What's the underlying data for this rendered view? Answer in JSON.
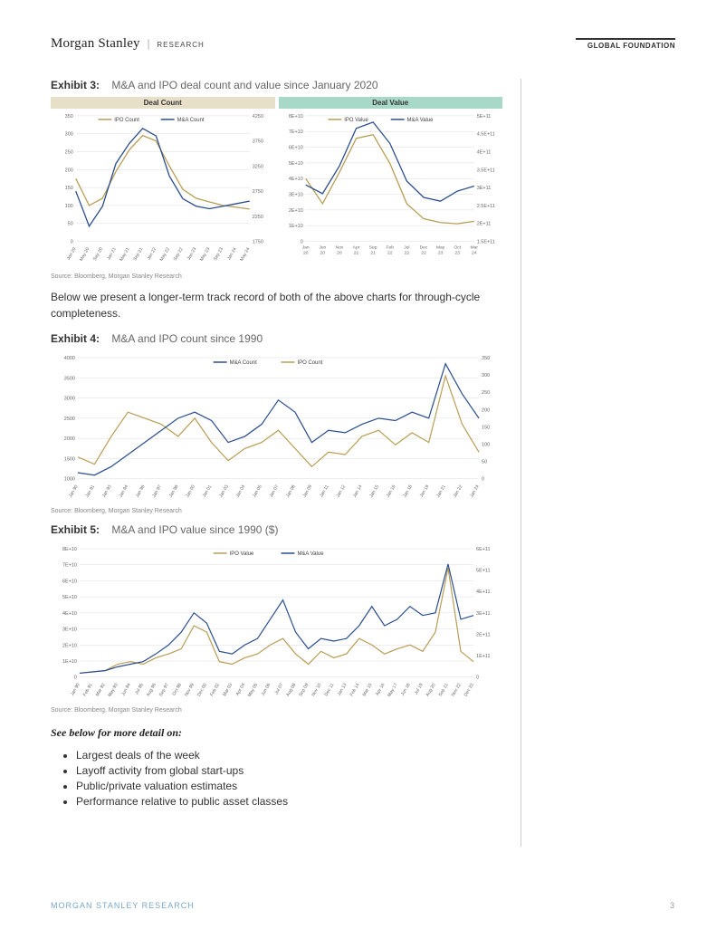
{
  "header": {
    "brand": "Morgan Stanley",
    "brand_sub": "RESEARCH",
    "right_label": "GLOBAL FOUNDATION"
  },
  "exhibit3": {
    "num": "Exhibit 3:",
    "desc": "M&A and IPO deal count and value since January 2020",
    "count_header": "Deal Count",
    "value_header": "Deal Value",
    "source": "Source: Bloomberg, Morgan Stanley Research",
    "colors": {
      "ipo": "#b89d54",
      "ma": "#2a4d8f",
      "grid": "#dddddd",
      "axis": "#999999"
    },
    "count": {
      "legend": [
        "IPO Count",
        "M&A Count"
      ],
      "y_left": {
        "min": 0,
        "max": 350,
        "step": 50
      },
      "y_right": {
        "min": 1750,
        "max": 4250,
        "step": 500
      },
      "x_labels": [
        "Jan 20",
        "May 20",
        "Sep 20",
        "Jan 21",
        "May 21",
        "Sep 21",
        "Jan 22",
        "May 22",
        "Sep 22",
        "Jan 23",
        "May 23",
        "Sep 23",
        "Jan 24",
        "May 24"
      ],
      "ipo_data": [
        175,
        100,
        120,
        195,
        255,
        295,
        280,
        210,
        145,
        120,
        110,
        100,
        95,
        90
      ],
      "ma_data": [
        2750,
        2050,
        2450,
        3300,
        3700,
        4000,
        3850,
        3050,
        2600,
        2450,
        2400,
        2450,
        2500,
        2550
      ]
    },
    "value": {
      "legend": [
        "IPO Value",
        "M&A Value"
      ],
      "y_left_labels": [
        "0",
        "1E+10",
        "2E+10",
        "3E+10",
        "4E+10",
        "5E+10",
        "6E+10",
        "7E+10",
        "8E+10"
      ],
      "y_right_labels": [
        "1.5E+11",
        "2E+11",
        "2.5E+11",
        "3E+11",
        "3.5E+11",
        "4E+11",
        "4.5E+11",
        "5E+11"
      ],
      "x_labels": [
        "Jan 20",
        "Jun 20",
        "Nov 20",
        "Apr 21",
        "Sep 21",
        "Feb 22",
        "Jul 22",
        "Dec 22",
        "May 23",
        "Oct 23",
        "Mar 24"
      ],
      "ipo_data_rel": [
        0.5,
        0.3,
        0.55,
        0.82,
        0.85,
        0.62,
        0.3,
        0.18,
        0.15,
        0.14,
        0.16
      ],
      "ma_data_rel": [
        0.45,
        0.38,
        0.6,
        0.9,
        0.95,
        0.78,
        0.48,
        0.35,
        0.32,
        0.4,
        0.44
      ]
    }
  },
  "body_text": "Below we present a longer-term track record of both of the above charts for through-cycle completeness.",
  "exhibit4": {
    "num": "Exhibit 4:",
    "desc": "M&A and IPO count since 1990",
    "source": "Source: Bloomberg, Morgan Stanley Research",
    "legend": [
      "M&A Count",
      "IPO Count"
    ],
    "colors": {
      "ipo": "#b89d54",
      "ma": "#2a4d8f"
    },
    "y_left": {
      "min": 1000,
      "max": 4000,
      "step": 500
    },
    "y_right": {
      "min": 0,
      "max": 350,
      "step": 50
    },
    "x_labels": [
      "Jan 90",
      "Jan 91",
      "Jan 93",
      "Jan 94",
      "Jan 96",
      "Jan 97",
      "Jan 98",
      "Jan 00",
      "Jan 01",
      "Jan 03",
      "Jan 04",
      "Jan 05",
      "Jan 07",
      "Jan 08",
      "Jan 09",
      "Jan 11",
      "Jan 12",
      "Jan 14",
      "Jan 15",
      "Jan 16",
      "Jan 18",
      "Jan 19",
      "Jan 21",
      "Jan 22",
      "Jan 24"
    ],
    "ma_rel": [
      0.05,
      0.03,
      0.1,
      0.2,
      0.3,
      0.4,
      0.5,
      0.55,
      0.48,
      0.3,
      0.35,
      0.45,
      0.65,
      0.55,
      0.3,
      0.4,
      0.38,
      0.45,
      0.5,
      0.48,
      0.55,
      0.5,
      0.95,
      0.7,
      0.5
    ],
    "ipo_rel": [
      0.18,
      0.12,
      0.35,
      0.55,
      0.5,
      0.45,
      0.35,
      0.5,
      0.3,
      0.15,
      0.25,
      0.3,
      0.4,
      0.25,
      0.1,
      0.22,
      0.2,
      0.35,
      0.4,
      0.28,
      0.38,
      0.3,
      0.85,
      0.45,
      0.22
    ]
  },
  "exhibit5": {
    "num": "Exhibit 5:",
    "desc": "M&A and IPO value since 1990 ($)",
    "source": "Source: Bloomberg, Morgan Stanley Research",
    "legend": [
      "IPO Value",
      "M&A Value"
    ],
    "colors": {
      "ipo": "#b89d54",
      "ma": "#2a4d8f"
    },
    "y_left_labels": [
      "0",
      "1E+10",
      "2E+10",
      "3E+10",
      "4E+10",
      "5E+10",
      "6E+10",
      "7E+10",
      "8E+10"
    ],
    "y_right_labels": [
      "0",
      "1E+11",
      "2E+11",
      "3E+11",
      "4E+11",
      "5E+11",
      "6E+11"
    ],
    "x_labels": [
      "Jan 90",
      "Feb 91",
      "Mar 92",
      "May 93",
      "Jun 94",
      "Jul 95",
      "Aug 96",
      "Sep 97",
      "Oct 98",
      "Nov 99",
      "Dec 00",
      "Feb 02",
      "Mar 03",
      "Apr 04",
      "May 05",
      "Jun 06",
      "Jul 07",
      "Aug 08",
      "Sep 09",
      "Nov 10",
      "Dec 11",
      "Jan 13",
      "Feb 14",
      "Mar 15",
      "Apr 16",
      "May 17",
      "Jun 18",
      "Jul 19",
      "Aug 20",
      "Sep 21",
      "Nov 22",
      "Dec 23"
    ],
    "ipo_rel": [
      0.03,
      0.04,
      0.05,
      0.1,
      0.12,
      0.1,
      0.15,
      0.18,
      0.22,
      0.4,
      0.35,
      0.12,
      0.1,
      0.15,
      0.18,
      0.25,
      0.3,
      0.18,
      0.1,
      0.2,
      0.15,
      0.18,
      0.3,
      0.25,
      0.18,
      0.22,
      0.25,
      0.2,
      0.35,
      0.85,
      0.2,
      0.12
    ],
    "ma_rel": [
      0.03,
      0.04,
      0.05,
      0.08,
      0.1,
      0.12,
      0.18,
      0.25,
      0.35,
      0.5,
      0.42,
      0.2,
      0.18,
      0.25,
      0.3,
      0.45,
      0.6,
      0.35,
      0.22,
      0.3,
      0.28,
      0.3,
      0.4,
      0.55,
      0.4,
      0.45,
      0.55,
      0.48,
      0.5,
      0.88,
      0.45,
      0.48
    ]
  },
  "see_below": "See below for more detail on:",
  "bullets": [
    "Largest deals of the week",
    "Layoff activity from global start-ups",
    "Public/private valuation estimates",
    "Performance relative to public asset classes"
  ],
  "footer": {
    "left": "MORGAN STANLEY RESEARCH",
    "page": "3"
  }
}
